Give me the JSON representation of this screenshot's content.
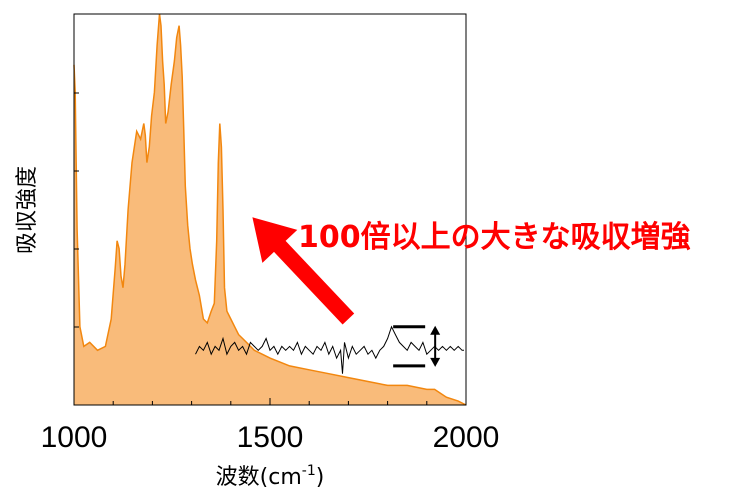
{
  "chart_data": {
    "type": "area",
    "title": "",
    "xlabel": "波数(cm",
    "xlabel_sup": "-1",
    "xlabel_close": ")",
    "ylabel": "吸収強度",
    "xlim": [
      1000,
      2000
    ],
    "ylim": [
      0,
      1
    ],
    "xticks": [
      1000,
      1500,
      2000
    ],
    "xtick_labels": [
      "1000",
      "1500",
      "2000"
    ],
    "grid": false,
    "series": [
      {
        "style": "filled-area",
        "color": "#f2870f",
        "fill": "#f9bb7a",
        "x": [
          1000,
          1003,
          1008,
          1015,
          1025,
          1040,
          1060,
          1080,
          1095,
          1105,
          1110,
          1115,
          1120,
          1125,
          1130,
          1138,
          1148,
          1160,
          1170,
          1178,
          1182,
          1186,
          1192,
          1198,
          1205,
          1212,
          1218,
          1222,
          1226,
          1230,
          1234,
          1240,
          1248,
          1256,
          1262,
          1268,
          1272,
          1276,
          1280,
          1284,
          1290,
          1296,
          1302,
          1310,
          1320,
          1330,
          1340,
          1350,
          1358,
          1364,
          1368,
          1372,
          1376,
          1380,
          1384,
          1390,
          1400,
          1410,
          1420,
          1430,
          1440,
          1460,
          1480,
          1500,
          1550,
          1600,
          1650,
          1700,
          1750,
          1800,
          1850,
          1900,
          1920,
          1950,
          1980,
          2000
        ],
        "y": [
          0.87,
          0.8,
          0.45,
          0.2,
          0.15,
          0.16,
          0.14,
          0.15,
          0.22,
          0.35,
          0.42,
          0.4,
          0.33,
          0.3,
          0.36,
          0.5,
          0.62,
          0.7,
          0.68,
          0.72,
          0.69,
          0.62,
          0.66,
          0.74,
          0.8,
          0.92,
          1.0,
          0.97,
          0.88,
          0.82,
          0.72,
          0.75,
          0.82,
          0.88,
          0.94,
          0.97,
          0.92,
          0.84,
          0.7,
          0.56,
          0.46,
          0.4,
          0.36,
          0.32,
          0.28,
          0.22,
          0.21,
          0.24,
          0.26,
          0.42,
          0.62,
          0.72,
          0.66,
          0.5,
          0.3,
          0.24,
          0.22,
          0.2,
          0.18,
          0.17,
          0.16,
          0.14,
          0.13,
          0.12,
          0.1,
          0.09,
          0.08,
          0.07,
          0.06,
          0.05,
          0.05,
          0.04,
          0.04,
          0.02,
          0.01,
          0.0
        ]
      },
      {
        "style": "line",
        "color": "#000000",
        "x": [
          1310,
          1320,
          1330,
          1340,
          1350,
          1360,
          1370,
          1380,
          1390,
          1400,
          1410,
          1420,
          1430,
          1440,
          1450,
          1460,
          1470,
          1480,
          1490,
          1500,
          1510,
          1520,
          1530,
          1540,
          1550,
          1560,
          1570,
          1580,
          1590,
          1600,
          1610,
          1620,
          1630,
          1640,
          1650,
          1660,
          1670,
          1680,
          1685,
          1690,
          1700,
          1710,
          1720,
          1730,
          1740,
          1750,
          1760,
          1770,
          1780,
          1790,
          1800,
          1810,
          1820,
          1830,
          1840,
          1850,
          1860,
          1870,
          1880,
          1890,
          1900,
          1910,
          1920,
          1930,
          1940,
          1950,
          1960,
          1970,
          1980,
          1990,
          1995
        ],
        "y": [
          0.13,
          0.15,
          0.14,
          0.16,
          0.13,
          0.15,
          0.14,
          0.17,
          0.13,
          0.15,
          0.16,
          0.14,
          0.15,
          0.13,
          0.16,
          0.15,
          0.14,
          0.15,
          0.17,
          0.14,
          0.15,
          0.13,
          0.15,
          0.14,
          0.15,
          0.14,
          0.16,
          0.13,
          0.15,
          0.14,
          0.13,
          0.15,
          0.14,
          0.16,
          0.13,
          0.15,
          0.12,
          0.14,
          0.08,
          0.16,
          0.12,
          0.15,
          0.13,
          0.14,
          0.15,
          0.13,
          0.14,
          0.12,
          0.14,
          0.15,
          0.17,
          0.2,
          0.18,
          0.16,
          0.15,
          0.14,
          0.16,
          0.15,
          0.14,
          0.16,
          0.13,
          0.14,
          0.15,
          0.14,
          0.15,
          0.14,
          0.15,
          0.14,
          0.15,
          0.14,
          0.14
        ]
      }
    ],
    "annotations": [
      {
        "type": "text",
        "text": "100倍以上の大きな吸収増強",
        "color": "#ff0000"
      },
      {
        "type": "arrow",
        "color": "#ff0000",
        "from": [
          1700,
          0.22
        ],
        "to": [
          1455,
          0.48
        ]
      },
      {
        "type": "scale-bar",
        "color": "#000000",
        "x": 1855,
        "y1": 0.1,
        "y2": 0.2
      }
    ]
  }
}
